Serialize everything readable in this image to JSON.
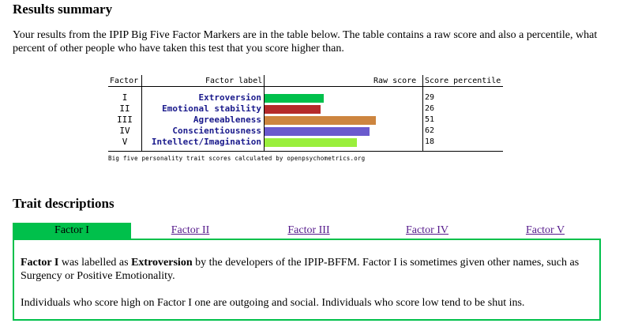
{
  "results_heading": "Results summary",
  "intro": "Your results from the IPIP Big Five Factor Markers are in the table below. The table contains a raw score and also a percentile, what percent of other people who have taken this test that you score higher than.",
  "table": {
    "headers": {
      "factor": "Factor",
      "label": "Factor label",
      "raw": "Raw score",
      "percentile": "Score percentile"
    },
    "rows": [
      {
        "numeral": "I",
        "label": "Extroversion",
        "percentile": "29",
        "color": "#00c04b",
        "raw_fraction": 0.38
      },
      {
        "numeral": "II",
        "label": "Emotional stability",
        "percentile": "26",
        "color": "#b52a2a",
        "raw_fraction": 0.36
      },
      {
        "numeral": "III",
        "label": "Agreeableness",
        "percentile": "51",
        "color": "#cd853f",
        "raw_fraction": 0.71
      },
      {
        "numeral": "IV",
        "label": "Conscientiousness",
        "percentile": "62",
        "color": "#6a5acd",
        "raw_fraction": 0.67
      },
      {
        "numeral": "V",
        "label": "Intellect/Imagination",
        "percentile": "18",
        "color": "#9aef3c",
        "raw_fraction": 0.59
      }
    ],
    "caption": "Big five personality trait scores calculated by openpsychometrics.org"
  },
  "trait_heading": "Trait descriptions",
  "tabs": [
    "Factor I",
    "Factor II",
    "Factor III",
    "Factor IV",
    "Factor V"
  ],
  "panel": {
    "p1_factor": "Factor I",
    "p1_mid": " was labelled as ",
    "p1_name": "Extroversion",
    "p1_rest": " by the developers of the IPIP-BFFM. Factor I is sometimes given other names, such as Surgency or Positive Emotionality.",
    "p2": "Individuals who score high on Factor I one are outgoing and social. Individuals who score low tend to be shut ins."
  },
  "colors": {
    "accent": "#00c04b",
    "link": "#551a8b"
  }
}
